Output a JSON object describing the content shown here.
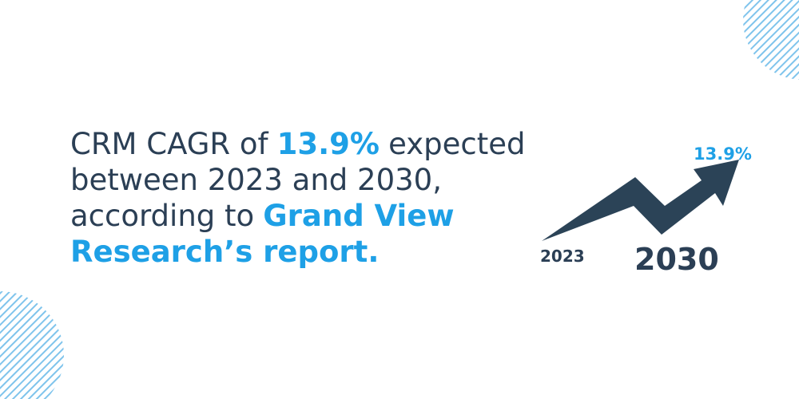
{
  "headline": {
    "lines": [
      {
        "segments": [
          {
            "text": "CRM CAGR of",
            "highlight": false
          },
          {
            "text": "13.9%",
            "highlight": true
          },
          {
            "text": "expected",
            "highlight": false
          }
        ]
      },
      {
        "segments": [
          {
            "text": "between 2023 and 2030,",
            "highlight": false
          }
        ]
      },
      {
        "segments": [
          {
            "text": "according to",
            "highlight": false
          },
          {
            "text": "Grand View",
            "highlight": true
          }
        ]
      },
      {
        "segments": [
          {
            "text": "Research’s report.",
            "highlight": true
          }
        ]
      }
    ]
  },
  "graphic": {
    "growth_label": "13.9%",
    "start_label": "2023",
    "end_label": "2030"
  }
}
